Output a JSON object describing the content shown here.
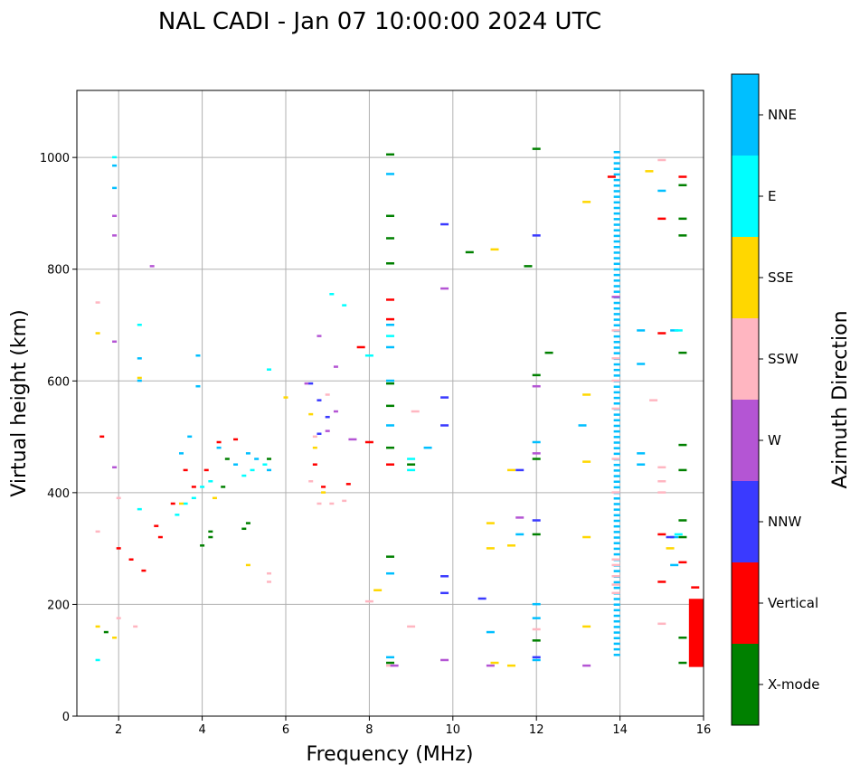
{
  "chart_data": {
    "type": "scatter",
    "title": "NAL CADI - Jan 07 10:00:00 2024 UTC",
    "xlabel": "Frequency (MHz)",
    "ylabel": "Virtual height (km)",
    "xlim": [
      1,
      16
    ],
    "ylim": [
      0,
      1120
    ],
    "xticks": [
      "2",
      "4",
      "6",
      "8",
      "10",
      "12",
      "14",
      "16"
    ],
    "yticks": [
      "0",
      "200",
      "400",
      "600",
      "800",
      "1000"
    ],
    "grid": true,
    "colorbar": {
      "label": "Azimuth Direction",
      "categories": [
        {
          "name": "X-mode",
          "color": "#008000"
        },
        {
          "name": "Vertical",
          "color": "#ff0000"
        },
        {
          "name": "NNW",
          "color": "#3a3aff"
        },
        {
          "name": "W",
          "color": "#b455d4"
        },
        {
          "name": "SSW",
          "color": "#ffb6c1"
        },
        {
          "name": "SSE",
          "color": "#ffd700"
        },
        {
          "name": "E",
          "color": "#00ffff"
        },
        {
          "name": "NNE",
          "color": "#00bfff"
        }
      ]
    },
    "series": [
      {
        "name": "NNE",
        "points": [
          [
            1.9,
            985
          ],
          [
            1.9,
            945
          ],
          [
            2.5,
            640
          ],
          [
            2.5,
            600
          ],
          [
            3.5,
            470
          ],
          [
            3.7,
            500
          ],
          [
            3.9,
            645
          ],
          [
            3.9,
            590
          ],
          [
            4.4,
            480
          ],
          [
            4.8,
            450
          ],
          [
            5.1,
            470
          ],
          [
            5.3,
            460
          ],
          [
            5.6,
            440
          ],
          [
            8.5,
            970
          ],
          [
            8.5,
            700
          ],
          [
            8.5,
            660
          ],
          [
            8.5,
            600
          ],
          [
            8.5,
            520
          ],
          [
            8.5,
            255
          ],
          [
            8.5,
            105
          ],
          [
            12.0,
            490
          ],
          [
            12.0,
            200
          ],
          [
            12.0,
            175
          ],
          [
            12.0,
            100
          ],
          [
            13.1,
            520
          ],
          [
            14.5,
            690
          ],
          [
            14.5,
            630
          ],
          [
            14.5,
            470
          ],
          [
            14.5,
            450
          ],
          [
            15.0,
            940
          ],
          [
            15.3,
            690
          ],
          [
            15.3,
            320
          ],
          [
            15.3,
            270
          ],
          [
            10.9,
            150
          ],
          [
            11.6,
            325
          ],
          [
            9.4,
            480
          ]
        ]
      },
      {
        "name": "E",
        "points": [
          [
            1.5,
            100
          ],
          [
            1.9,
            1000
          ],
          [
            2.5,
            370
          ],
          [
            2.5,
            700
          ],
          [
            3.4,
            360
          ],
          [
            3.6,
            380
          ],
          [
            3.8,
            390
          ],
          [
            4.0,
            410
          ],
          [
            4.2,
            420
          ],
          [
            5.0,
            430
          ],
          [
            5.2,
            440
          ],
          [
            5.5,
            450
          ],
          [
            5.6,
            620
          ],
          [
            7.1,
            755
          ],
          [
            7.4,
            735
          ],
          [
            8.0,
            645
          ],
          [
            8.5,
            680
          ],
          [
            9.0,
            440
          ],
          [
            9.0,
            460
          ],
          [
            15.4,
            690
          ],
          [
            15.4,
            325
          ]
        ]
      },
      {
        "name": "SSE",
        "points": [
          [
            1.5,
            685
          ],
          [
            1.5,
            160
          ],
          [
            1.9,
            140
          ],
          [
            2.5,
            605
          ],
          [
            3.5,
            380
          ],
          [
            4.3,
            390
          ],
          [
            5.1,
            270
          ],
          [
            6.0,
            570
          ],
          [
            6.6,
            540
          ],
          [
            6.7,
            480
          ],
          [
            6.9,
            400
          ],
          [
            8.2,
            225
          ],
          [
            10.9,
            345
          ],
          [
            10.9,
            300
          ],
          [
            11.0,
            835
          ],
          [
            11.0,
            95
          ],
          [
            11.4,
            440
          ],
          [
            11.4,
            305
          ],
          [
            11.4,
            90
          ],
          [
            13.2,
            920
          ],
          [
            13.2,
            575
          ],
          [
            13.2,
            455
          ],
          [
            13.2,
            320
          ],
          [
            13.2,
            160
          ],
          [
            14.7,
            975
          ],
          [
            15.2,
            300
          ]
        ]
      },
      {
        "name": "SSW",
        "points": [
          [
            1.5,
            740
          ],
          [
            1.5,
            330
          ],
          [
            2.0,
            390
          ],
          [
            2.0,
            175
          ],
          [
            2.4,
            160
          ],
          [
            5.6,
            255
          ],
          [
            5.6,
            240
          ],
          [
            6.6,
            420
          ],
          [
            6.7,
            500
          ],
          [
            6.8,
            380
          ],
          [
            7.0,
            575
          ],
          [
            7.1,
            380
          ],
          [
            7.4,
            385
          ],
          [
            8.0,
            205
          ],
          [
            8.5,
            90
          ],
          [
            9.1,
            545
          ],
          [
            9.0,
            160
          ],
          [
            12.0,
            155
          ],
          [
            13.9,
            690
          ],
          [
            13.9,
            640
          ],
          [
            13.9,
            600
          ],
          [
            13.9,
            550
          ],
          [
            13.9,
            460
          ],
          [
            13.9,
            400
          ],
          [
            13.9,
            280
          ],
          [
            13.9,
            270
          ],
          [
            13.9,
            250
          ],
          [
            13.9,
            235
          ],
          [
            13.9,
            220
          ],
          [
            15.0,
            995
          ],
          [
            15.0,
            445
          ],
          [
            15.0,
            420
          ],
          [
            15.0,
            400
          ],
          [
            15.0,
            165
          ],
          [
            14.8,
            565
          ]
        ]
      },
      {
        "name": "W",
        "points": [
          [
            1.9,
            670
          ],
          [
            1.9,
            445
          ],
          [
            1.9,
            895
          ],
          [
            1.9,
            860
          ],
          [
            2.8,
            805
          ],
          [
            6.5,
            595
          ],
          [
            6.8,
            680
          ],
          [
            7.0,
            510
          ],
          [
            7.2,
            625
          ],
          [
            7.2,
            545
          ],
          [
            7.6,
            495
          ],
          [
            8.6,
            90
          ],
          [
            9.8,
            765
          ],
          [
            9.8,
            100
          ],
          [
            10.9,
            90
          ],
          [
            11.6,
            355
          ],
          [
            12.0,
            590
          ],
          [
            12.0,
            470
          ],
          [
            13.2,
            90
          ],
          [
            13.9,
            750
          ]
        ]
      },
      {
        "name": "NNW",
        "points": [
          [
            6.6,
            595
          ],
          [
            6.8,
            565
          ],
          [
            6.8,
            505
          ],
          [
            7.0,
            535
          ],
          [
            9.8,
            880
          ],
          [
            9.8,
            570
          ],
          [
            9.8,
            520
          ],
          [
            9.8,
            250
          ],
          [
            9.8,
            220
          ],
          [
            10.7,
            210
          ],
          [
            11.6,
            440
          ],
          [
            12.0,
            860
          ],
          [
            12.0,
            350
          ],
          [
            12.0,
            105
          ],
          [
            15.2,
            320
          ]
        ]
      },
      {
        "name": "Vertical",
        "points": [
          [
            1.6,
            500
          ],
          [
            2.0,
            300
          ],
          [
            2.3,
            280
          ],
          [
            2.6,
            260
          ],
          [
            2.9,
            340
          ],
          [
            3.0,
            320
          ],
          [
            3.3,
            380
          ],
          [
            3.6,
            440
          ],
          [
            3.8,
            410
          ],
          [
            4.1,
            440
          ],
          [
            4.4,
            490
          ],
          [
            4.8,
            495
          ],
          [
            6.7,
            450
          ],
          [
            6.9,
            410
          ],
          [
            7.5,
            415
          ],
          [
            7.8,
            660
          ],
          [
            8.0,
            490
          ],
          [
            8.5,
            745
          ],
          [
            8.5,
            710
          ],
          [
            8.5,
            450
          ],
          [
            13.8,
            965
          ],
          [
            15.0,
            890
          ],
          [
            15.0,
            685
          ],
          [
            15.0,
            325
          ],
          [
            15.0,
            240
          ],
          [
            15.5,
            275
          ],
          [
            15.5,
            965
          ],
          [
            15.8,
            230
          ]
        ]
      },
      {
        "name": "X-mode",
        "points": [
          [
            1.7,
            150
          ],
          [
            4.0,
            305
          ],
          [
            4.2,
            320
          ],
          [
            4.2,
            330
          ],
          [
            4.5,
            410
          ],
          [
            4.6,
            460
          ],
          [
            5.0,
            335
          ],
          [
            5.1,
            345
          ],
          [
            5.6,
            460
          ],
          [
            8.5,
            1005
          ],
          [
            8.5,
            895
          ],
          [
            8.5,
            855
          ],
          [
            8.5,
            810
          ],
          [
            8.5,
            595
          ],
          [
            8.5,
            555
          ],
          [
            8.5,
            480
          ],
          [
            8.5,
            285
          ],
          [
            8.5,
            95
          ],
          [
            9.0,
            450
          ],
          [
            10.4,
            830
          ],
          [
            11.8,
            805
          ],
          [
            12.0,
            1015
          ],
          [
            12.0,
            610
          ],
          [
            12.0,
            460
          ],
          [
            12.0,
            325
          ],
          [
            12.0,
            135
          ],
          [
            12.3,
            650
          ],
          [
            15.5,
            950
          ],
          [
            15.5,
            890
          ],
          [
            15.5,
            860
          ],
          [
            15.5,
            650
          ],
          [
            15.5,
            485
          ],
          [
            15.5,
            440
          ],
          [
            15.5,
            350
          ],
          [
            15.5,
            320
          ],
          [
            15.5,
            140
          ],
          [
            15.5,
            95
          ]
        ]
      }
    ],
    "bars": [
      {
        "category": "Vertical",
        "x": [
          15.65,
          16.0
        ],
        "y": [
          88,
          210
        ]
      },
      {
        "category": "NNE",
        "x": [
          13.85,
          14.0
        ],
        "y": [
          110,
          1015
        ]
      }
    ]
  }
}
